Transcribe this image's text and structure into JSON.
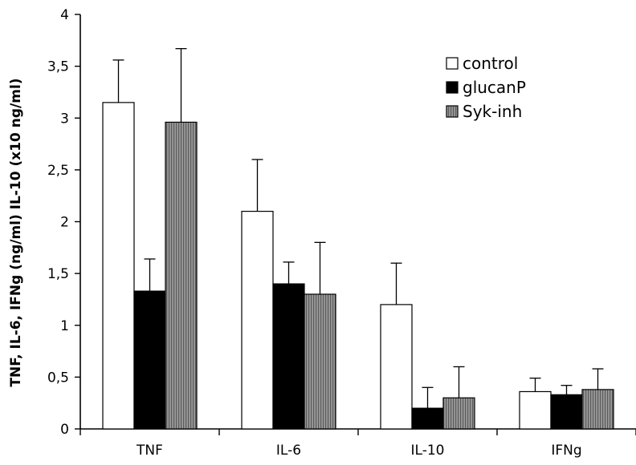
{
  "chart_data": {
    "type": "bar",
    "title": "",
    "xlabel": "",
    "ylabel": "TNF, IL-6, IFNg (ng/ml) IL-10 (x10 ng/ml)",
    "ylim": [
      0,
      4
    ],
    "yticks": [
      0,
      0.5,
      1,
      1.5,
      2,
      2.5,
      3,
      3.5,
      4
    ],
    "ytick_labels": [
      "0",
      "0,5",
      "1",
      "1,5",
      "2",
      "2,5",
      "3",
      "3,5",
      "4"
    ],
    "categories": [
      "TNF",
      "IL-6",
      "IL-10",
      "IFNg"
    ],
    "series": [
      {
        "name": "control",
        "values": [
          3.15,
          2.1,
          1.2,
          0.36
        ],
        "error": [
          0.41,
          0.5,
          0.4,
          0.13
        ],
        "fill": "#ffffff",
        "pattern": "none"
      },
      {
        "name": "glucanP",
        "values": [
          1.33,
          1.4,
          0.2,
          0.33
        ],
        "error": [
          0.31,
          0.21,
          0.2,
          0.09
        ],
        "fill": "#000000",
        "pattern": "none"
      },
      {
        "name": "Syk-inh",
        "values": [
          2.96,
          1.3,
          0.3,
          0.38
        ],
        "error": [
          0.71,
          0.5,
          0.3,
          0.2
        ],
        "fill": "#808080",
        "pattern": "vertical-stripes"
      }
    ],
    "legend_position": "top-right",
    "grid": false,
    "error_bars": "upper"
  }
}
